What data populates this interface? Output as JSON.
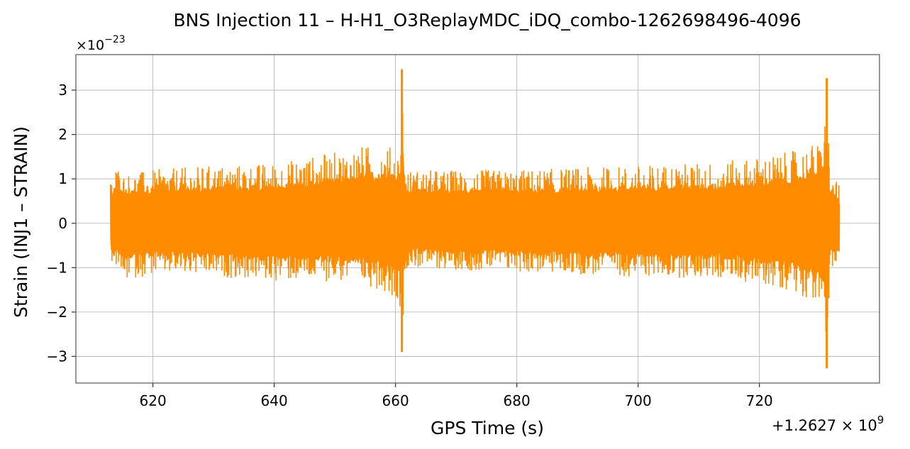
{
  "chart_data": {
    "type": "line",
    "title": "BNS Injection 11 – H-H1_O3ReplayMDC_iDQ_combo-1262698496-4096",
    "xlabel": "GPS Time (s)",
    "ylabel": "Strain (INJ1 – STRAIN)",
    "y_exponent_label": "×10",
    "y_exponent_power": "−23",
    "x_offset_label": "+1.2627 × 10",
    "x_offset_power": "9",
    "x_ticks": [
      620,
      640,
      660,
      680,
      700,
      720
    ],
    "x_tick_labels": [
      "620",
      "640",
      "660",
      "680",
      "700",
      "720"
    ],
    "y_ticks": [
      -3,
      -2,
      -1,
      0,
      1,
      2,
      3
    ],
    "y_tick_labels": [
      "−3",
      "−2",
      "−1",
      "0",
      "1",
      "2",
      "3"
    ],
    "xlim": [
      607.3,
      739.8
    ],
    "ylim": [
      -3.6,
      3.8
    ],
    "grid": true,
    "series": [
      {
        "color": "#ff8c00",
        "x_start": 613.0,
        "x_end": 733.2,
        "envelope": [
          {
            "x": 613.0,
            "upper": 0.95,
            "lower": -0.85
          },
          {
            "x": 614.0,
            "upper": 1.35,
            "lower": -1.0
          },
          {
            "x": 615.0,
            "upper": 1.1,
            "lower": -1.3
          },
          {
            "x": 620.0,
            "upper": 1.2,
            "lower": -1.15
          },
          {
            "x": 630.0,
            "upper": 1.3,
            "lower": -1.2
          },
          {
            "x": 640.0,
            "upper": 1.35,
            "lower": -1.3
          },
          {
            "x": 650.0,
            "upper": 1.6,
            "lower": -1.3
          },
          {
            "x": 655.0,
            "upper": 1.75,
            "lower": -1.4
          },
          {
            "x": 658.0,
            "upper": 1.7,
            "lower": -1.5
          },
          {
            "x": 660.0,
            "upper": 1.75,
            "lower": -1.7
          },
          {
            "x": 660.7,
            "upper": 1.5,
            "lower": -1.8
          },
          {
            "x": 661.05,
            "upper": 3.45,
            "lower": -2.88
          },
          {
            "x": 661.6,
            "upper": 1.2,
            "lower": -1.0
          },
          {
            "x": 680.0,
            "upper": 1.2,
            "lower": -1.1
          },
          {
            "x": 700.0,
            "upper": 1.3,
            "lower": -1.2
          },
          {
            "x": 715.0,
            "upper": 1.4,
            "lower": -1.25
          },
          {
            "x": 725.0,
            "upper": 1.6,
            "lower": -1.5
          },
          {
            "x": 729.0,
            "upper": 1.8,
            "lower": -1.75
          },
          {
            "x": 730.5,
            "upper": 1.8,
            "lower": -2.0
          },
          {
            "x": 731.1,
            "upper": 3.25,
            "lower": -3.25
          },
          {
            "x": 731.6,
            "upper": 1.1,
            "lower": -1.0
          },
          {
            "x": 733.2,
            "upper": 0.85,
            "lower": -1.05
          }
        ]
      }
    ]
  }
}
